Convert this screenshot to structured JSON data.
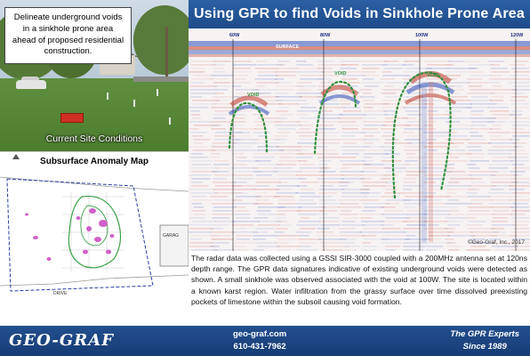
{
  "header": {
    "title": "Using GPR to find Voids in Sinkhole Prone Area"
  },
  "site_photo": {
    "callout_text": "Delineate underground voids in a sinkhole prone area ahead of proposed residential construction.",
    "caption": "Current Site Conditions"
  },
  "map": {
    "caption": "Subsurface Anomaly Map",
    "labels": {
      "garage": "GARAG",
      "drive": "DRIVE"
    }
  },
  "radargram": {
    "surface_label": "SURFACE",
    "markers": [
      "60W",
      "80W",
      "100W",
      "120W"
    ],
    "void_label": "VOID",
    "copyright": "©Geo-Graf, Inc., 2017",
    "colors": {
      "positive": "#c0392b",
      "negative": "#2e4fb8",
      "void_outline": "#2f8f3a"
    }
  },
  "description": "The radar data was collected using a GSSI SIR-3000 coupled with a 200MHz antenna set at 120ns depth range. The GPR data signatures indicative of existing underground voids were detected as shown. A small sinkhole was observed associated with the void at 100W. The site is located within a known karst region. Water infiltration from the grassy surface over time dissolved preexisting pockets of limestone within the subsoil causing void formation.",
  "footer": {
    "logo": "GEO-GRAF",
    "website": "geo-graf.com",
    "phone": "610-431-7962",
    "tagline": "The GPR Experts",
    "since": "Since 1989",
    "colors": {
      "bar": "#1d4b8a"
    }
  }
}
